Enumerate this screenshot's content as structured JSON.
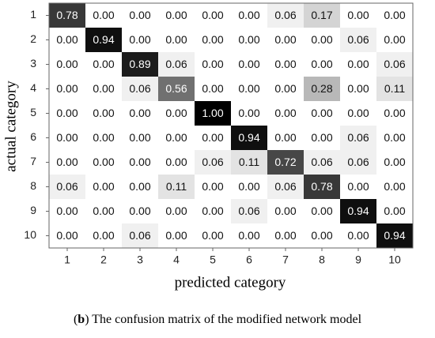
{
  "chart_data": {
    "type": "heatmap",
    "x_label": "predicted category",
    "y_label": "actual category",
    "categories": [
      "1",
      "2",
      "3",
      "4",
      "5",
      "6",
      "7",
      "8",
      "9",
      "10"
    ],
    "rows": [
      "1",
      "2",
      "3",
      "4",
      "5",
      "6",
      "7",
      "8",
      "9",
      "10"
    ],
    "values": [
      [
        0.78,
        0,
        0,
        0,
        0,
        0,
        0.06,
        0.17,
        0,
        0
      ],
      [
        0,
        0.94,
        0,
        0,
        0,
        0,
        0,
        0,
        0.06,
        0
      ],
      [
        0,
        0,
        0.89,
        0.06,
        0,
        0,
        0,
        0,
        0,
        0.06
      ],
      [
        0,
        0,
        0.06,
        0.56,
        0,
        0,
        0,
        0.28,
        0,
        0.11
      ],
      [
        0,
        0,
        0,
        0,
        1.0,
        0,
        0,
        0,
        0,
        0
      ],
      [
        0,
        0,
        0,
        0,
        0,
        0.94,
        0,
        0,
        0.06,
        0
      ],
      [
        0,
        0,
        0,
        0,
        0.06,
        0.11,
        0.72,
        0.06,
        0.06,
        0
      ],
      [
        0.06,
        0,
        0,
        0.11,
        0,
        0,
        0.06,
        0.78,
        0,
        0
      ],
      [
        0,
        0,
        0,
        0,
        0,
        0.06,
        0,
        0,
        0.94,
        0
      ],
      [
        0,
        0,
        0.06,
        0,
        0,
        0,
        0,
        0,
        0,
        0.94
      ]
    ],
    "value_labels": [
      [
        "0.78",
        "0.00",
        "0.00",
        "0.00",
        "0.00",
        "0.00",
        "0.06",
        "0.17",
        "0.00",
        "0.00"
      ],
      [
        "0.00",
        "0.94",
        "0.00",
        "0.00",
        "0.00",
        "0.00",
        "0.00",
        "0.00",
        "0.06",
        "0.00"
      ],
      [
        "0.00",
        "0.00",
        "0.89",
        "0.06",
        "0.00",
        "0.00",
        "0.00",
        "0.00",
        "0.00",
        "0.06"
      ],
      [
        "0.00",
        "0.00",
        "0.06",
        "0.56",
        "0.00",
        "0.00",
        "0.00",
        "0.28",
        "0.00",
        "0.11"
      ],
      [
        "0.00",
        "0.00",
        "0.00",
        "0.00",
        "1.00",
        "0.00",
        "0.00",
        "0.00",
        "0.00",
        "0.00"
      ],
      [
        "0.00",
        "0.00",
        "0.00",
        "0.00",
        "0.00",
        "0.94",
        "0.00",
        "0.00",
        "0.06",
        "0.00"
      ],
      [
        "0.00",
        "0.00",
        "0.00",
        "0.00",
        "0.06",
        "0.11",
        "0.72",
        "0.06",
        "0.06",
        "0.00"
      ],
      [
        "0.06",
        "0.00",
        "0.00",
        "0.11",
        "0.00",
        "0.00",
        "0.06",
        "0.78",
        "0.00",
        "0.00"
      ],
      [
        "0.00",
        "0.00",
        "0.00",
        "0.00",
        "0.00",
        "0.06",
        "0.00",
        "0.00",
        "0.94",
        "0.00"
      ],
      [
        "0.00",
        "0.00",
        "0.06",
        "0.00",
        "0.00",
        "0.00",
        "0.00",
        "0.00",
        "0.00",
        "0.94"
      ]
    ],
    "colormap": "gray_r",
    "caption": [
      "(",
      "b",
      ") The confusion matrix of the modified network model"
    ]
  }
}
